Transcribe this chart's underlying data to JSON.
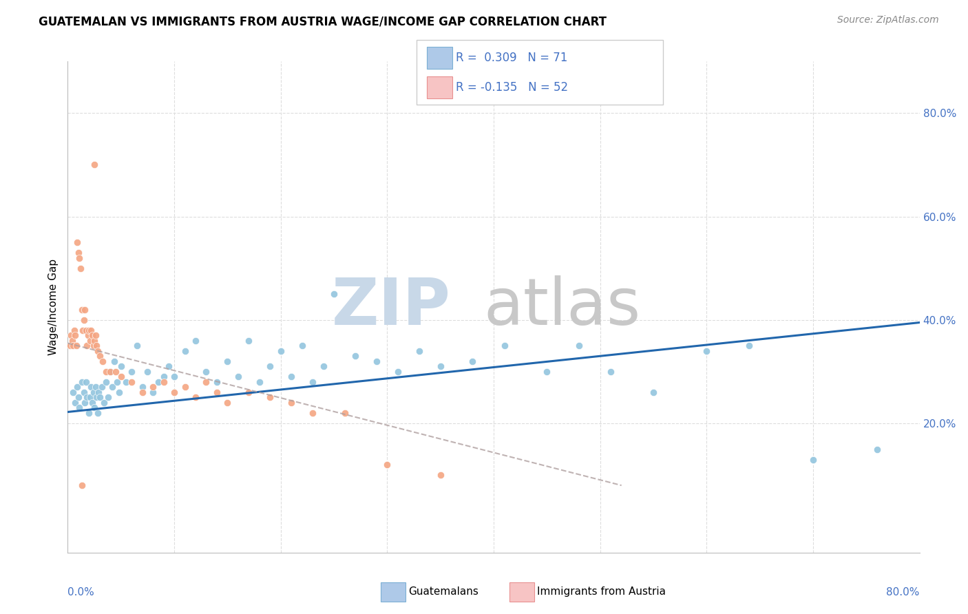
{
  "title": "GUATEMALAN VS IMMIGRANTS FROM AUSTRIA WAGE/INCOME GAP CORRELATION CHART",
  "source": "Source: ZipAtlas.com",
  "ylabel": "Wage/Income Gap",
  "ytick_labels": [
    "20.0%",
    "40.0%",
    "60.0%",
    "80.0%"
  ],
  "ytick_values": [
    0.2,
    0.4,
    0.6,
    0.8
  ],
  "xlim": [
    0.0,
    0.8
  ],
  "ylim": [
    -0.05,
    0.9
  ],
  "guatemalan_color": "#92c5de",
  "austria_color": "#f4a582",
  "trendline_blue_color": "#2166ac",
  "trendline_pink_color": "#b0a0a0",
  "watermark_zip_color": "#c8d8e8",
  "watermark_atlas_color": "#c8c8c8",
  "grid_color": "#dddddd",
  "title_fontsize": 12,
  "source_fontsize": 10,
  "tick_fontsize": 11,
  "legend_fontsize": 12,
  "guat_x": [
    0.005,
    0.007,
    0.009,
    0.01,
    0.011,
    0.013,
    0.015,
    0.016,
    0.017,
    0.018,
    0.02,
    0.021,
    0.022,
    0.023,
    0.024,
    0.025,
    0.026,
    0.027,
    0.028,
    0.029,
    0.03,
    0.032,
    0.034,
    0.036,
    0.038,
    0.04,
    0.042,
    0.044,
    0.046,
    0.048,
    0.05,
    0.055,
    0.06,
    0.065,
    0.07,
    0.075,
    0.08,
    0.085,
    0.09,
    0.095,
    0.1,
    0.11,
    0.12,
    0.13,
    0.14,
    0.15,
    0.16,
    0.17,
    0.18,
    0.19,
    0.2,
    0.21,
    0.22,
    0.23,
    0.24,
    0.25,
    0.27,
    0.29,
    0.31,
    0.33,
    0.35,
    0.38,
    0.41,
    0.45,
    0.48,
    0.51,
    0.55,
    0.6,
    0.64,
    0.7,
    0.76
  ],
  "guat_y": [
    0.26,
    0.24,
    0.27,
    0.25,
    0.23,
    0.28,
    0.26,
    0.24,
    0.28,
    0.25,
    0.22,
    0.25,
    0.27,
    0.24,
    0.26,
    0.23,
    0.27,
    0.25,
    0.22,
    0.26,
    0.25,
    0.27,
    0.24,
    0.28,
    0.25,
    0.3,
    0.27,
    0.32,
    0.28,
    0.26,
    0.31,
    0.28,
    0.3,
    0.35,
    0.27,
    0.3,
    0.26,
    0.28,
    0.29,
    0.31,
    0.29,
    0.34,
    0.36,
    0.3,
    0.28,
    0.32,
    0.29,
    0.36,
    0.28,
    0.31,
    0.34,
    0.29,
    0.35,
    0.28,
    0.31,
    0.45,
    0.33,
    0.32,
    0.3,
    0.34,
    0.31,
    0.32,
    0.35,
    0.3,
    0.35,
    0.3,
    0.26,
    0.34,
    0.35,
    0.13,
    0.15
  ],
  "aust_x": [
    0.002,
    0.003,
    0.004,
    0.005,
    0.006,
    0.007,
    0.008,
    0.009,
    0.01,
    0.011,
    0.012,
    0.013,
    0.014,
    0.015,
    0.016,
    0.017,
    0.018,
    0.019,
    0.02,
    0.021,
    0.022,
    0.023,
    0.024,
    0.025,
    0.026,
    0.027,
    0.028,
    0.03,
    0.033,
    0.036,
    0.04,
    0.045,
    0.05,
    0.06,
    0.07,
    0.08,
    0.09,
    0.1,
    0.11,
    0.12,
    0.13,
    0.14,
    0.15,
    0.17,
    0.19,
    0.21,
    0.23,
    0.26,
    0.3,
    0.35,
    0.025,
    0.013
  ],
  "aust_y": [
    0.35,
    0.37,
    0.36,
    0.35,
    0.38,
    0.37,
    0.35,
    0.55,
    0.53,
    0.52,
    0.5,
    0.42,
    0.38,
    0.4,
    0.42,
    0.38,
    0.35,
    0.37,
    0.38,
    0.36,
    0.38,
    0.37,
    0.35,
    0.36,
    0.37,
    0.35,
    0.34,
    0.33,
    0.32,
    0.3,
    0.3,
    0.3,
    0.29,
    0.28,
    0.26,
    0.27,
    0.28,
    0.26,
    0.27,
    0.25,
    0.28,
    0.26,
    0.24,
    0.26,
    0.25,
    0.24,
    0.22,
    0.22,
    0.12,
    0.1,
    0.7,
    0.08
  ],
  "guat_trendline_x": [
    0.0,
    0.8
  ],
  "guat_trendline_y": [
    0.222,
    0.395
  ],
  "aust_trendline_x": [
    0.0,
    0.52
  ],
  "aust_trendline_y": [
    0.355,
    0.08
  ]
}
